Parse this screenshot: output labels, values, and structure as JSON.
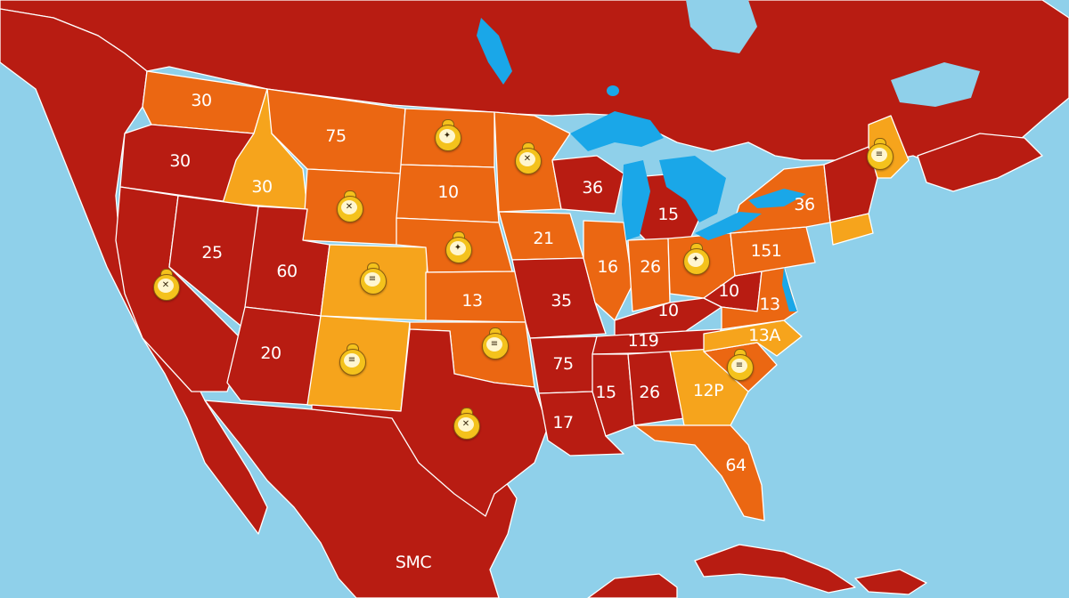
{
  "map": {
    "colors": {
      "water": "#8fd0ea",
      "lake": "#1aa7e8",
      "land_dark": "#b81c12",
      "land_orange": "#eb6712",
      "land_yellow": "#f6a41c",
      "border": "#ffffff"
    },
    "region_labels": [
      {
        "id": "washington",
        "text": "30"
      },
      {
        "id": "montana",
        "text": "75"
      },
      {
        "id": "oregon",
        "text": "30"
      },
      {
        "id": "idaho",
        "text": "30"
      },
      {
        "id": "south-dakota",
        "text": "10"
      },
      {
        "id": "wisconsin",
        "text": "36"
      },
      {
        "id": "michigan",
        "text": "15"
      },
      {
        "id": "new-york",
        "text": "36"
      },
      {
        "id": "iowa",
        "text": "21"
      },
      {
        "id": "nevada",
        "text": "25"
      },
      {
        "id": "utah",
        "text": "60"
      },
      {
        "id": "kansas",
        "text": "13"
      },
      {
        "id": "missouri",
        "text": "35"
      },
      {
        "id": "illinois",
        "text": "16"
      },
      {
        "id": "indiana",
        "text": "26"
      },
      {
        "id": "pennsylvania",
        "text": "151"
      },
      {
        "id": "west-virginia",
        "text": "10"
      },
      {
        "id": "kentucky",
        "text": "10"
      },
      {
        "id": "virginia",
        "text": "13"
      },
      {
        "id": "arizona",
        "text": "20"
      },
      {
        "id": "tennessee",
        "text": "119"
      },
      {
        "id": "north-carolina",
        "text": "13A"
      },
      {
        "id": "arkansas",
        "text": "75"
      },
      {
        "id": "mississippi",
        "text": "15"
      },
      {
        "id": "alabama",
        "text": "26"
      },
      {
        "id": "georgia",
        "text": "12P"
      },
      {
        "id": "louisiana",
        "text": "17"
      },
      {
        "id": "florida",
        "text": "64"
      },
      {
        "id": "mexico",
        "text": "SMC"
      }
    ],
    "markers": [
      {
        "id": "north-dakota-marker",
        "icon": "badge-icon"
      },
      {
        "id": "minnesota-marker",
        "icon": "badge-icon"
      },
      {
        "id": "wyoming-marker",
        "icon": "badge-icon"
      },
      {
        "id": "nebraska-marker",
        "icon": "badge-icon"
      },
      {
        "id": "colorado-marker",
        "icon": "badge-icon"
      },
      {
        "id": "california-marker",
        "icon": "badge-icon"
      },
      {
        "id": "ohio-marker",
        "icon": "badge-icon"
      },
      {
        "id": "maine-marker",
        "icon": "badge-icon"
      },
      {
        "id": "new-mexico-marker",
        "icon": "badge-icon"
      },
      {
        "id": "oklahoma-marker",
        "icon": "badge-icon"
      },
      {
        "id": "south-carolina-marker",
        "icon": "badge-icon"
      },
      {
        "id": "texas-marker",
        "icon": "badge-icon"
      }
    ]
  }
}
